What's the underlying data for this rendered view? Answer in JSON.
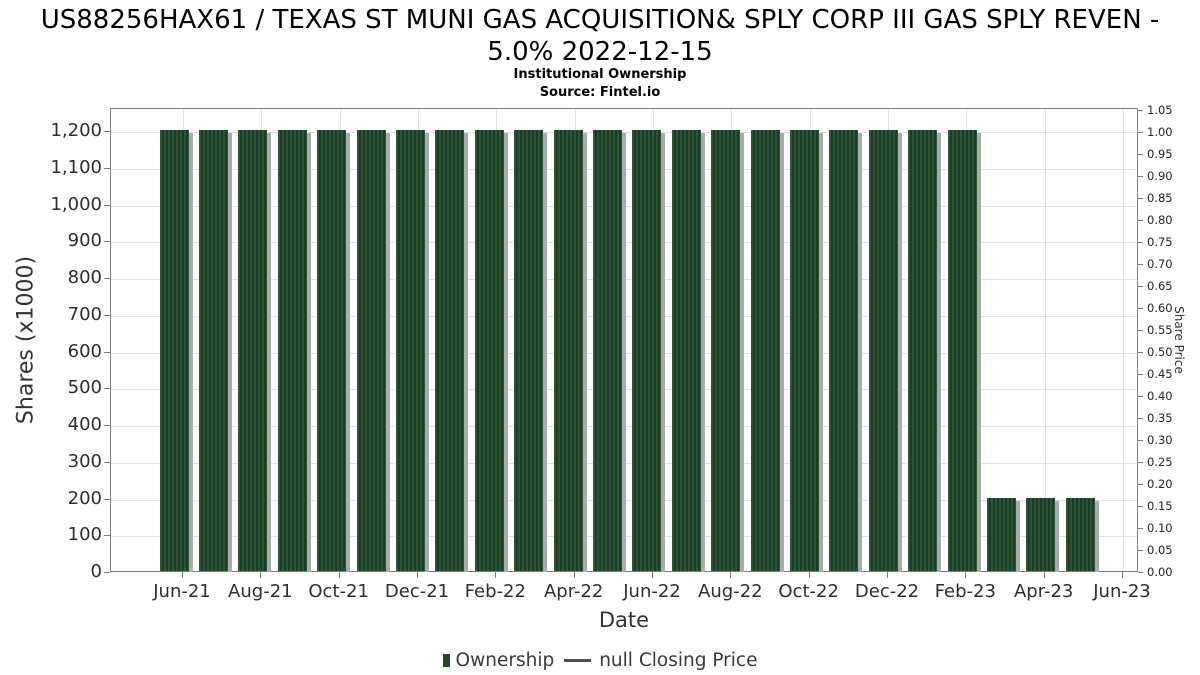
{
  "header": {
    "title": "US88256HAX61 / TEXAS ST MUNI GAS ACQUISITION& SPLY CORP III GAS SPLY REVEN - 5.0% 2022-12-15",
    "subtitle": "Institutional Ownership",
    "source": "Source: Fintel.io"
  },
  "chart_data": {
    "type": "bar",
    "title": "US88256HAX61 / TEXAS ST MUNI GAS ACQUISITION& SPLY CORP III GAS SPLY REVEN - 5.0% 2022-12-15",
    "subtitle": "Institutional Ownership",
    "source": "Source: Fintel.io",
    "xlabel": "Date",
    "ylabel_left": "Shares (x1000)",
    "ylabel_right": "Share Price",
    "categories": [
      "Jun-21",
      "Jul-21",
      "Aug-21",
      "Sep-21",
      "Oct-21",
      "Nov-21",
      "Dec-21",
      "Jan-22",
      "Feb-22",
      "Mar-22",
      "Apr-22",
      "May-22",
      "Jun-22",
      "Jul-22",
      "Aug-22",
      "Sep-22",
      "Oct-22",
      "Nov-22",
      "Dec-22",
      "Jan-23",
      "Feb-23",
      "Mar-23",
      "Apr-23",
      "May-23"
    ],
    "series": [
      {
        "name": "Ownership",
        "axis": "left",
        "values": [
          1200,
          1200,
          1200,
          1200,
          1200,
          1200,
          1200,
          1200,
          1200,
          1200,
          1200,
          1200,
          1200,
          1200,
          1200,
          1200,
          1200,
          1200,
          1200,
          1200,
          1200,
          200,
          200,
          200
        ]
      },
      {
        "name": "null Closing Price",
        "axis": "right",
        "values": []
      }
    ],
    "ylim_left": [
      0,
      1262
    ],
    "ylim_right": [
      0.0,
      1.05
    ],
    "y_ticks_left": [
      "0",
      "100",
      "200",
      "300",
      "400",
      "500",
      "600",
      "700",
      "800",
      "900",
      "1,000",
      "1,100",
      "1,200"
    ],
    "y_ticks_right": [
      "0.00",
      "0.05",
      "0.10",
      "0.15",
      "0.20",
      "0.25",
      "0.30",
      "0.35",
      "0.40",
      "0.45",
      "0.50",
      "0.55",
      "0.60",
      "0.65",
      "0.70",
      "0.75",
      "0.80",
      "0.85",
      "0.90",
      "0.95",
      "1.00",
      "1.05"
    ],
    "x_ticks": [
      "Jun-21",
      "Aug-21",
      "Oct-21",
      "Dec-21",
      "Feb-22",
      "Apr-22",
      "Jun-22",
      "Aug-22",
      "Oct-22",
      "Dec-22",
      "Feb-23",
      "Apr-23",
      "Jun-23"
    ],
    "grid": true,
    "legend_position": "bottom-center",
    "legend": [
      {
        "label": "Ownership",
        "marker": "square",
        "color": "#1f4a2a"
      },
      {
        "label": "null Closing Price",
        "marker": "line",
        "color": "#4d4d4d"
      }
    ],
    "colors": {
      "bar_hatch_light": "#2d5637",
      "bar_hatch_dark": "#1d3c26",
      "bar_shadow": "#ababab",
      "gridline": "#e2e2e2",
      "axis_frame": "#7f7f7f",
      "tick_label": "#2e2e2e",
      "title_text": "#000000"
    }
  }
}
